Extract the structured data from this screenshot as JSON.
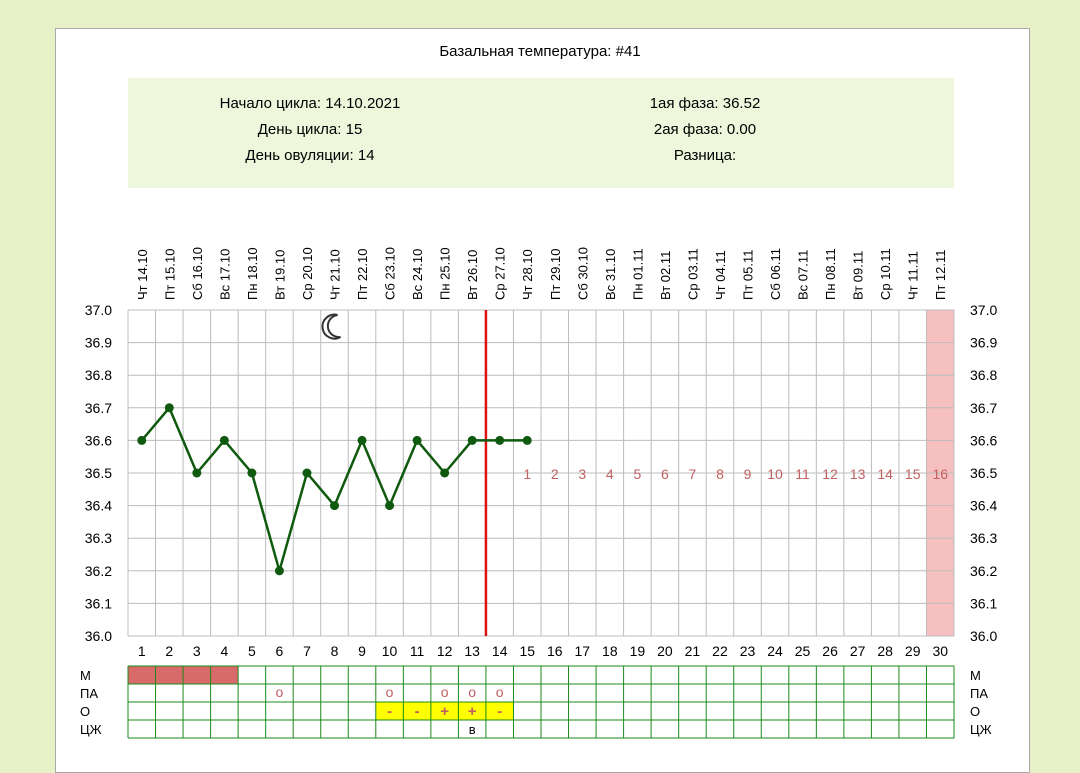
{
  "title": "Базальная температура: #41",
  "info": {
    "cycle_start": "Начало цикла: 14.10.2021",
    "cycle_day": "День цикла: 15",
    "ovulation_day": "День овуляции: 14",
    "phase1": "1ая фаза: 36.52",
    "phase2": "2ая фаза: 0.00",
    "difference": "Разница:"
  },
  "colors": {
    "info_bg": "#eef6dc",
    "temp_line": "#0f5a0f",
    "ovulation_line": "#dd1111",
    "coverline_numbers": "#c06060",
    "menstruation": "#d96a6a",
    "expected_period": "#f6c0c0",
    "table_grid": "#1a8a1a",
    "ovulation_test": "#ffff00",
    "moon_icon": "#333333"
  },
  "chart_data": {
    "type": "line",
    "dates": [
      "Чт 14.10",
      "Пт 15.10",
      "Сб 16.10",
      "Вс 17.10",
      "Пн 18.10",
      "Вт 19.10",
      "Ср 20.10",
      "Чт 21.10",
      "Пт 22.10",
      "Сб 23.10",
      "Вс 24.10",
      "Пн 25.10",
      "Вт 26.10",
      "Ср 27.10",
      "Чт 28.10",
      "Пт 29.10",
      "Сб 30.10",
      "Вс 31.10",
      "Пн 01.11",
      "Вт 02.11",
      "Ср 03.11",
      "Чт 04.11",
      "Пт 05.11",
      "Сб 06.11",
      "Вс 07.11",
      "Пн 08.11",
      "Вт 09.11",
      "Ср 10.11",
      "Чт 11.11",
      "Пт 12.11"
    ],
    "days": [
      1,
      2,
      3,
      4,
      5,
      6,
      7,
      8,
      9,
      10,
      11,
      12,
      13,
      14,
      15,
      16,
      17,
      18,
      19,
      20,
      21,
      22,
      23,
      24,
      25,
      26,
      27,
      28,
      29,
      30
    ],
    "temperatures": [
      36.6,
      36.7,
      36.5,
      36.6,
      36.5,
      36.2,
      36.5,
      36.4,
      36.6,
      36.4,
      36.6,
      36.5,
      36.6,
      36.6,
      36.6
    ],
    "ylim": [
      36.0,
      37.0
    ],
    "yticks": [
      "37.0",
      "36.9",
      "36.8",
      "36.7",
      "36.6",
      "36.5",
      "36.4",
      "36.3",
      "36.2",
      "36.1",
      "36.0"
    ],
    "ovulation_day": 14,
    "moon_day": 8,
    "expected_period_day": 30,
    "luteal_numbers": [
      "1",
      "2",
      "3",
      "4",
      "5",
      "6",
      "7",
      "8",
      "9",
      "10",
      "11",
      "12",
      "13",
      "14",
      "15",
      "16"
    ],
    "luteal_numbers_temp": 36.5
  },
  "table": {
    "row_labels": [
      "М",
      "ПА",
      "О",
      "ЦЖ"
    ],
    "menstruation_days": [
      1,
      2,
      3,
      4
    ],
    "intercourse_days": [
      6,
      10,
      12,
      13,
      14
    ],
    "intercourse_mark": "о",
    "ovulation_tests": [
      {
        "day": 10,
        "mark": "-"
      },
      {
        "day": 11,
        "mark": "-"
      },
      {
        "day": 12,
        "mark": "+"
      },
      {
        "day": 13,
        "mark": "+"
      },
      {
        "day": 14,
        "mark": "-"
      }
    ],
    "cervical_fluid": [
      {
        "day": 13,
        "mark": "в"
      }
    ]
  }
}
